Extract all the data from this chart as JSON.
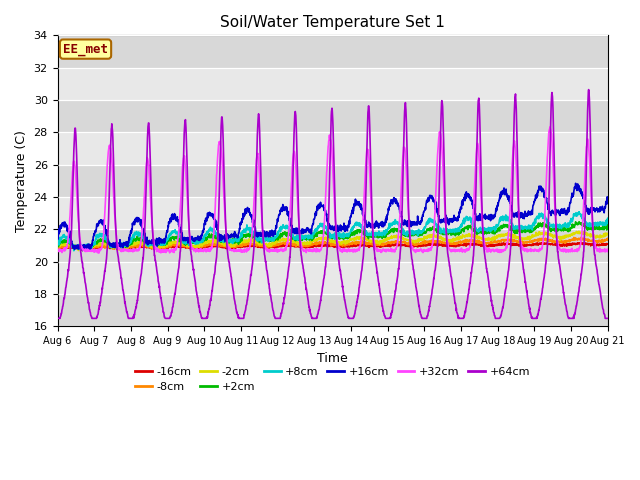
{
  "title": "Soil/Water Temperature Set 1",
  "xlabel": "Time",
  "ylabel": "Temperature (C)",
  "xlim": [
    0,
    15
  ],
  "ylim": [
    16,
    34
  ],
  "yticks": [
    16,
    18,
    20,
    22,
    24,
    26,
    28,
    30,
    32,
    34
  ],
  "background_color": "#ffffff",
  "plot_bg_color": "#e8e8e8",
  "annotation_text": "EE_met",
  "annotation_bg": "#ffffa0",
  "annotation_border": "#aa6600",
  "annotation_text_color": "#880000",
  "series_order": [
    "-16cm",
    "-8cm",
    "-2cm",
    "+2cm",
    "+8cm",
    "+16cm",
    "+32cm",
    "+64cm"
  ],
  "series_colors": {
    "-16cm": "#dd0000",
    "-8cm": "#ff8800",
    "-2cm": "#dddd00",
    "+2cm": "#00bb00",
    "+8cm": "#00cccc",
    "+16cm": "#0000cc",
    "+32cm": "#ff44ff",
    "+64cm": "#aa00cc"
  },
  "x_tick_labels": [
    "Aug 6",
    "Aug 7",
    "Aug 8",
    "Aug 9",
    "Aug 10",
    "Aug 11",
    "Aug 12",
    "Aug 13",
    "Aug 14",
    "Aug 15",
    "Aug 16",
    "Aug 17",
    "Aug 18",
    "Aug 19",
    "Aug 20",
    "Aug 21"
  ],
  "x_tick_positions": [
    0,
    1,
    2,
    3,
    4,
    5,
    6,
    7,
    8,
    9,
    10,
    11,
    12,
    13,
    14,
    15
  ]
}
